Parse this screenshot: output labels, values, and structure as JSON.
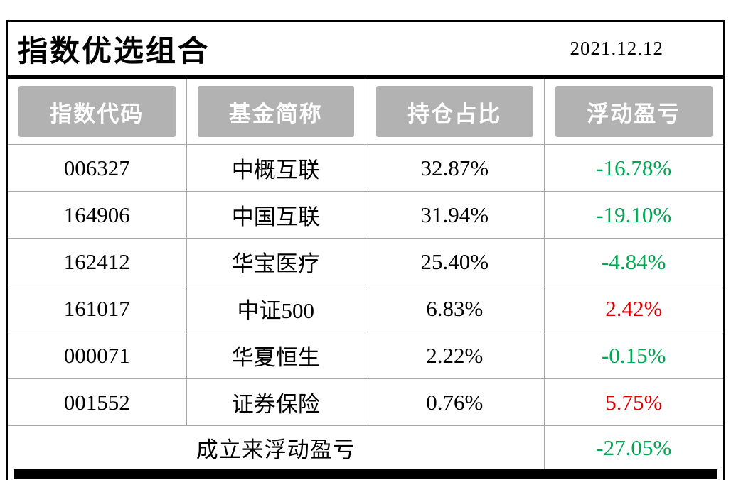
{
  "header": {
    "title": "指数优选组合",
    "date": "2021.12.12"
  },
  "table": {
    "columns": [
      "指数代码",
      "基金简称",
      "持仓占比",
      "浮动盈亏"
    ],
    "rows": [
      {
        "code": "006327",
        "name": "中概互联",
        "weight": "32.87%",
        "pl": "-16.78%",
        "pl_color": "green"
      },
      {
        "code": "164906",
        "name": "中国互联",
        "weight": "31.94%",
        "pl": "-19.10%",
        "pl_color": "green"
      },
      {
        "code": "162412",
        "name": "华宝医疗",
        "weight": "25.40%",
        "pl": "-4.84%",
        "pl_color": "green"
      },
      {
        "code": "161017",
        "name": "中证500",
        "weight": "6.83%",
        "pl": "2.42%",
        "pl_color": "red"
      },
      {
        "code": "000071",
        "name": "华夏恒生",
        "weight": "2.22%",
        "pl": "-0.15%",
        "pl_color": "green"
      },
      {
        "code": "001552",
        "name": "证券保险",
        "weight": "0.76%",
        "pl": "5.75%",
        "pl_color": "red"
      }
    ],
    "footer": {
      "label": "成立来浮动盈亏",
      "value": "-27.05%",
      "value_color": "green"
    }
  },
  "colors": {
    "green": "#00a651",
    "red": "#dd0000",
    "header_bg": "#b2b2b2"
  }
}
